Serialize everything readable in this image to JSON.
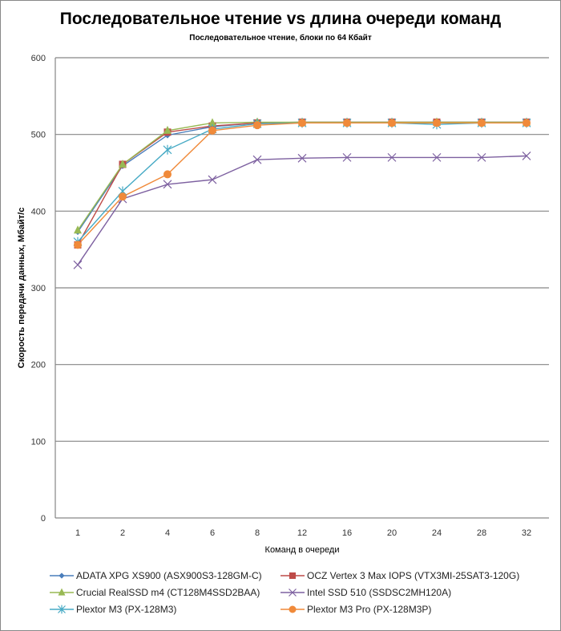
{
  "chart_data": {
    "type": "line",
    "title": "Последовательное чтение vs длина очереди команд",
    "subtitle": "Последовательное  чтение, блоки по 64 Кбайт",
    "xlabel": "Команд в очереди",
    "ylabel": "Скорость  передачи данных, Мбайт/с",
    "categories": [
      "1",
      "2",
      "4",
      "6",
      "8",
      "12",
      "16",
      "20",
      "24",
      "28",
      "32"
    ],
    "ylim": [
      0,
      600
    ],
    "yticks": [
      "0",
      "100",
      "200",
      "300",
      "400",
      "500",
      "600"
    ],
    "grid": true,
    "legend_position": "bottom",
    "series": [
      {
        "name": "ADATA XPG XS900 (ASX900S3-128GM-C)",
        "color": "#4A7EBB",
        "marker": "diamond",
        "values": [
          373,
          459,
          499,
          510,
          515,
          516,
          516,
          516,
          516,
          516,
          516
        ]
      },
      {
        "name": "OCZ Vertex 3 Max IOPS (VTX3MI-25SAT3-120G)",
        "color": "#BE4B48",
        "marker": "square",
        "values": [
          356,
          461,
          503,
          511,
          515,
          516,
          516,
          516,
          516,
          516,
          516
        ]
      },
      {
        "name": "Crucial RealSSD m4 (CT128M4SSD2BAA)",
        "color": "#98B954",
        "marker": "triangle",
        "values": [
          375,
          461,
          505,
          515,
          516,
          516,
          516,
          516,
          516,
          516,
          516
        ]
      },
      {
        "name": "Intel SSD 510 (SSDSC2MH120A)",
        "color": "#7D60A0",
        "marker": "x",
        "values": [
          330,
          416,
          435,
          441,
          467,
          469,
          470,
          470,
          470,
          470,
          472
        ]
      },
      {
        "name": "Plextor M3 (PX-128M3)",
        "color": "#46AAC5",
        "marker": "star",
        "values": [
          360,
          426,
          480,
          507,
          514,
          515,
          515,
          515,
          513,
          515,
          515
        ]
      },
      {
        "name": "Plextor M3 Pro (PX-128M3P)",
        "color": "#F08A3A",
        "marker": "circle",
        "values": [
          356,
          419,
          448,
          505,
          512,
          515,
          515,
          515,
          515,
          515,
          515
        ]
      }
    ]
  }
}
